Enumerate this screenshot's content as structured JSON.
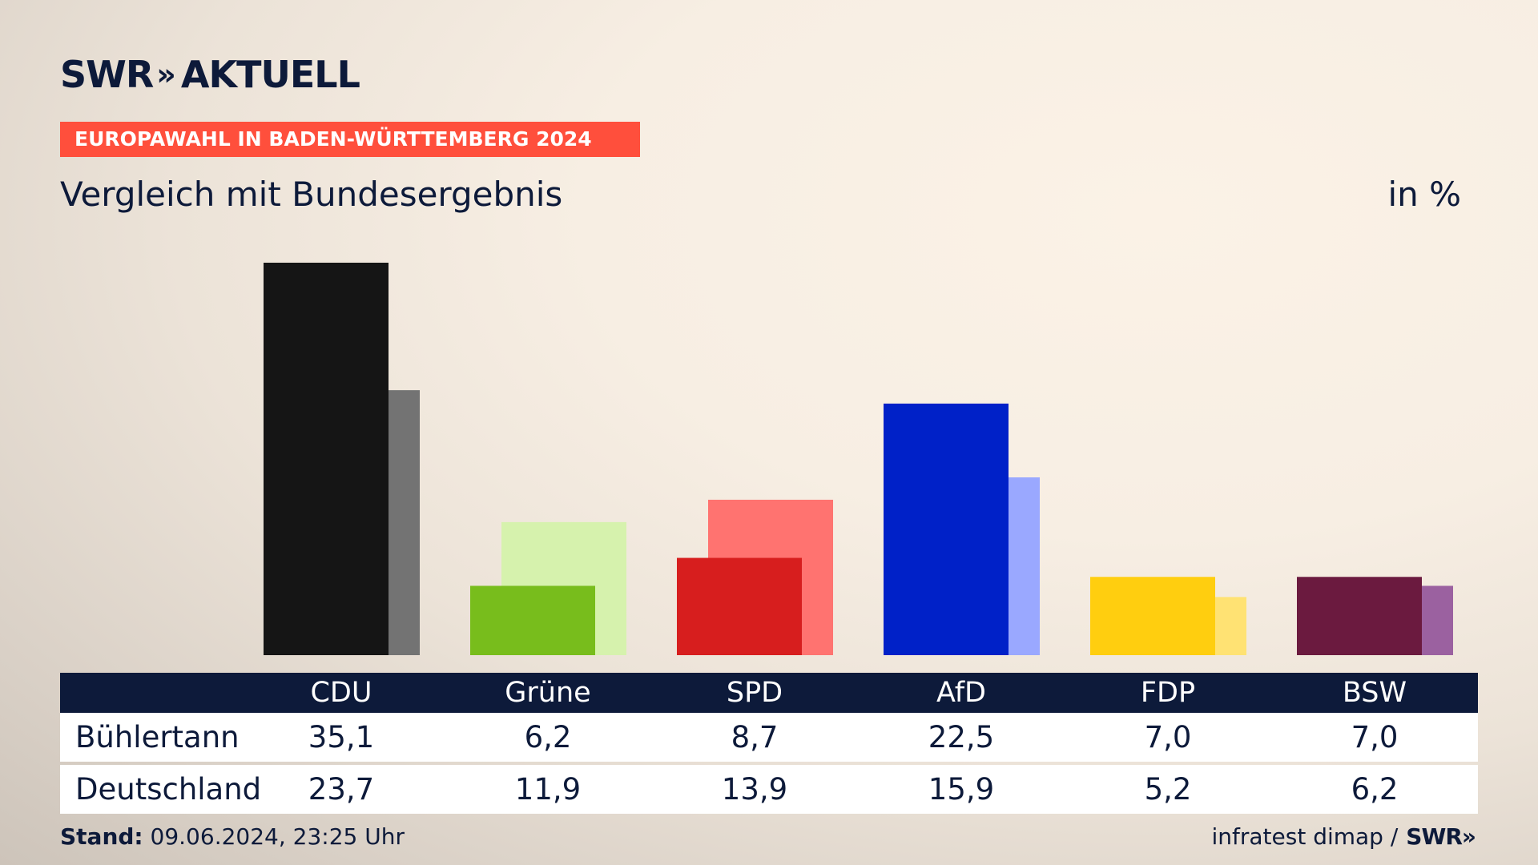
{
  "brand": {
    "name": "SWR",
    "chevron": "»",
    "product": "AKTUELL"
  },
  "banner": "EUROPAWAHL IN BADEN-WÜRTTEMBERG 2024",
  "subtitle": "Vergleich mit Bundesergebnis",
  "unit": "in %",
  "footer": {
    "stand_label": "Stand:",
    "stand_value": "09.06.2024, 23:25 Uhr",
    "source": "infratest dimap /",
    "source_brand": "SWR»"
  },
  "colors": {
    "accent": "#ff4f3c",
    "navy": "#0d1a3a",
    "CDU": [
      "#151515",
      "#737373"
    ],
    "Grüne": [
      "#78bd1c",
      "#d6f2ad"
    ],
    "SPD": [
      "#d71e1e",
      "#ff7370"
    ],
    "AfD": [
      "#0021c8",
      "#9aa8ff"
    ],
    "FDP": [
      "#ffce0f",
      "#ffe273"
    ],
    "BSW": [
      "#6b1a3f",
      "#9b61a0"
    ]
  },
  "chart_data": {
    "type": "bar",
    "categories": [
      "CDU",
      "Grüne",
      "SPD",
      "AfD",
      "FDP",
      "BSW"
    ],
    "series": [
      {
        "name": "Bühlertann",
        "values": [
          35.1,
          6.2,
          8.7,
          22.5,
          7.0,
          7.0
        ]
      },
      {
        "name": "Deutschland",
        "values": [
          23.7,
          11.9,
          13.9,
          15.9,
          5.2,
          6.2
        ]
      }
    ],
    "ylim": [
      0,
      35.1
    ],
    "grid": false,
    "legend": "table-below"
  },
  "table": {
    "headers": [
      "CDU",
      "Grüne",
      "SPD",
      "AfD",
      "FDP",
      "BSW"
    ],
    "rows": [
      {
        "label": "Bühlertann",
        "values": [
          "35,1",
          "6,2",
          "8,7",
          "22,5",
          "7,0",
          "7,0"
        ]
      },
      {
        "label": "Deutschland",
        "values": [
          "23,7",
          "11,9",
          "13,9",
          "15,9",
          "5,2",
          "6,2"
        ]
      }
    ]
  }
}
